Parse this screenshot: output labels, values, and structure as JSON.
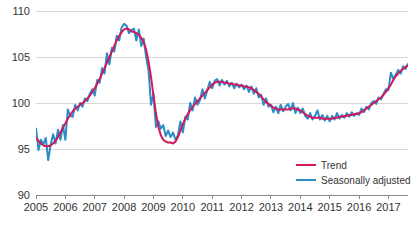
{
  "chart_data": {
    "type": "line",
    "categories": [
      "2005",
      null,
      null,
      null,
      null,
      null,
      null,
      null,
      null,
      null,
      null,
      null,
      "2006",
      null,
      null,
      null,
      null,
      null,
      null,
      null,
      null,
      null,
      null,
      null,
      "2007",
      null,
      null,
      null,
      null,
      null,
      null,
      null,
      null,
      null,
      null,
      null,
      "2008",
      null,
      null,
      null,
      null,
      null,
      null,
      null,
      null,
      null,
      null,
      null,
      "2009",
      null,
      null,
      null,
      null,
      null,
      null,
      null,
      null,
      null,
      null,
      null,
      "2010",
      null,
      null,
      null,
      null,
      null,
      null,
      null,
      null,
      null,
      null,
      null,
      "2011",
      null,
      null,
      null,
      null,
      null,
      null,
      null,
      null,
      null,
      null,
      null,
      "2012",
      null,
      null,
      null,
      null,
      null,
      null,
      null,
      null,
      null,
      null,
      null,
      "2013",
      null,
      null,
      null,
      null,
      null,
      null,
      null,
      null,
      null,
      null,
      null,
      "2014",
      null,
      null,
      null,
      null,
      null,
      null,
      null,
      null,
      null,
      null,
      null,
      "2015",
      null,
      null,
      null,
      null,
      null,
      null,
      null,
      null,
      null,
      null,
      null,
      "2016",
      null,
      null,
      null,
      null,
      null,
      null,
      null,
      null,
      null,
      null,
      null,
      "2017",
      null,
      null,
      null,
      null,
      null,
      null,
      null,
      null
    ],
    "series": [
      {
        "name": "Trend",
        "color": "#d2195a",
        "values": [
          96.2,
          95.9,
          95.6,
          95.4,
          95.3,
          95.3,
          95.4,
          95.6,
          95.9,
          96.3,
          96.8,
          97.3,
          97.8,
          98.3,
          98.7,
          99.1,
          99.4,
          99.6,
          99.8,
          100.0,
          100.2,
          100.5,
          100.8,
          101.2,
          101.6,
          102.1,
          102.6,
          103.2,
          103.8,
          104.4,
          105.0,
          105.6,
          106.2,
          106.8,
          107.3,
          107.7,
          108.0,
          108.1,
          108.0,
          107.8,
          107.7,
          107.6,
          107.4,
          107.1,
          106.6,
          105.8,
          104.5,
          102.8,
          100.8,
          98.9,
          97.4,
          96.5,
          96.0,
          95.8,
          95.7,
          95.7,
          95.6,
          95.8,
          96.3,
          97.0,
          97.7,
          98.3,
          98.8,
          99.2,
          99.6,
          99.9,
          100.2,
          100.5,
          100.8,
          101.1,
          101.4,
          101.7,
          102.0,
          102.2,
          102.3,
          102.3,
          102.3,
          102.2,
          102.2,
          102.1,
          102.1,
          102.0,
          102.0,
          101.9,
          101.9,
          101.8,
          101.8,
          101.7,
          101.6,
          101.4,
          101.2,
          101.0,
          100.7,
          100.4,
          100.1,
          99.9,
          99.7,
          99.5,
          99.4,
          99.3,
          99.3,
          99.3,
          99.3,
          99.3,
          99.4,
          99.4,
          99.4,
          99.3,
          99.2,
          99.0,
          98.8,
          98.6,
          98.5,
          98.4,
          98.4,
          98.4,
          98.4,
          98.3,
          98.3,
          98.3,
          98.3,
          98.3,
          98.4,
          98.4,
          98.5,
          98.5,
          98.6,
          98.6,
          98.7,
          98.7,
          98.8,
          98.8,
          98.9,
          99.0,
          99.2,
          99.4,
          99.6,
          99.8,
          100.0,
          100.2,
          100.4,
          100.6,
          100.9,
          101.2,
          101.6,
          102.0,
          102.5,
          102.9,
          103.2,
          103.5,
          103.7,
          103.9,
          104.1
        ]
      },
      {
        "name": "Seasonally adjusted",
        "color": "#2b8cc8",
        "values": [
          97.3,
          94.9,
          96.0,
          95.5,
          96.2,
          93.8,
          95.5,
          96.6,
          95.6,
          97.1,
          96.0,
          97.6,
          96.0,
          99.3,
          98.6,
          98.5,
          99.8,
          99.2,
          100.0,
          99.6,
          100.5,
          100.2,
          101.0,
          101.5,
          100.8,
          102.5,
          102.2,
          103.8,
          103.2,
          105.4,
          104.2,
          106.0,
          105.6,
          107.3,
          106.8,
          108.2,
          108.6,
          108.4,
          107.6,
          107.9,
          108.1,
          106.8,
          108.0,
          106.2,
          107.0,
          105.0,
          103.5,
          99.8,
          101.0,
          97.4,
          98.0,
          97.2,
          97.6,
          96.4,
          97.0,
          96.3,
          96.8,
          96.0,
          96.5,
          98.0,
          96.8,
          98.5,
          98.2,
          100.0,
          99.2,
          100.6,
          99.8,
          100.3,
          101.5,
          100.5,
          101.4,
          102.3,
          101.6,
          102.4,
          102.6,
          101.9,
          102.5,
          102.0,
          102.4,
          101.8,
          102.2,
          101.6,
          102.1,
          101.7,
          102.0,
          101.5,
          101.9,
          101.2,
          101.8,
          101.0,
          101.6,
          100.6,
          100.9,
          99.8,
          100.5,
          99.6,
          99.8,
          99.0,
          99.6,
          98.9,
          99.8,
          99.1,
          99.6,
          99.9,
          99.2,
          100.0,
          98.9,
          99.5,
          98.9,
          99.4,
          98.6,
          98.3,
          98.9,
          98.2,
          98.6,
          99.2,
          98.2,
          98.7,
          98.1,
          98.6,
          98.0,
          98.6,
          98.2,
          98.9,
          98.3,
          98.7,
          98.4,
          98.9,
          98.5,
          99.0,
          98.6,
          98.9,
          98.7,
          99.4,
          99.0,
          99.6,
          99.3,
          100.0,
          100.2,
          99.9,
          100.6,
          100.4,
          101.0,
          101.5,
          101.4,
          103.3,
          102.6,
          103.1,
          103.6,
          103.2,
          104.0,
          103.7,
          104.3
        ]
      }
    ],
    "ylim": [
      90,
      110
    ],
    "yticks": [
      90,
      95,
      100,
      105,
      110
    ],
    "grid": true,
    "legend": "lower right"
  }
}
